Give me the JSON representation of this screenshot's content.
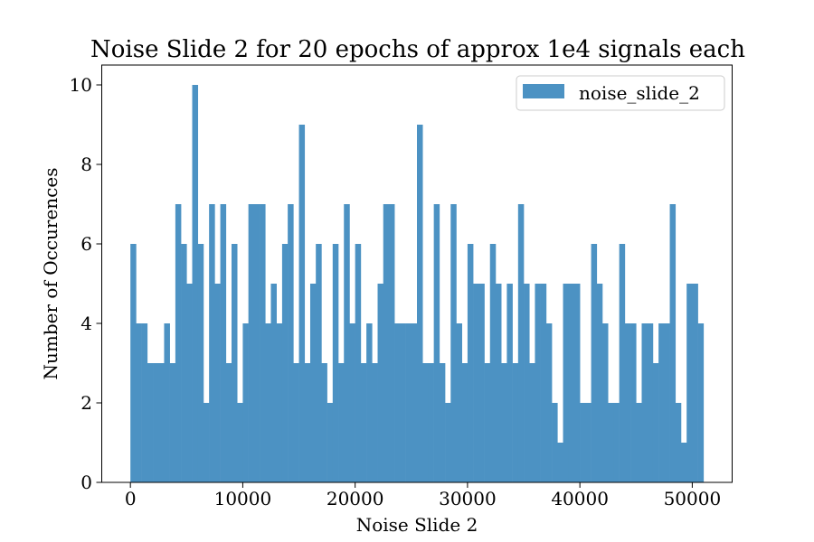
{
  "chart_data": {
    "type": "bar",
    "title": "Noise Slide 2 for 20 epochs of approx 1e4 signals each",
    "xlabel": "Noise Slide 2",
    "ylabel": "Number of Occurences",
    "xlim": [
      -2550,
      53550
    ],
    "ylim": [
      0,
      10.5
    ],
    "xticks": [
      0,
      10000,
      20000,
      30000,
      40000,
      50000
    ],
    "yticks": [
      0,
      2,
      4,
      6,
      8,
      10
    ],
    "grid": false,
    "legend_position": "top-right",
    "bin_range": [
      0,
      51000
    ],
    "series": [
      {
        "name": "noise_slide_2",
        "color": "#4c92c3",
        "counts": [
          6,
          4,
          4,
          3,
          3,
          3,
          4,
          3,
          7,
          6,
          5,
          10,
          6,
          2,
          7,
          5,
          7,
          3,
          6,
          2,
          4,
          7,
          7,
          7,
          4,
          5,
          4,
          6,
          7,
          3,
          9,
          3,
          5,
          6,
          3,
          2,
          6,
          3,
          7,
          4,
          6,
          3,
          4,
          3,
          5,
          7,
          7,
          4,
          4,
          4,
          4,
          9,
          3,
          3,
          7,
          3,
          2,
          7,
          4,
          3,
          6,
          5,
          5,
          3,
          6,
          5,
          3,
          5,
          3,
          7,
          5,
          3,
          5,
          5,
          4,
          2,
          1,
          5,
          5,
          5,
          2,
          2,
          6,
          5,
          4,
          2,
          2,
          6,
          4,
          4,
          2,
          4,
          4,
          3,
          4,
          4,
          7,
          2,
          1,
          5,
          5,
          4
        ]
      }
    ]
  }
}
